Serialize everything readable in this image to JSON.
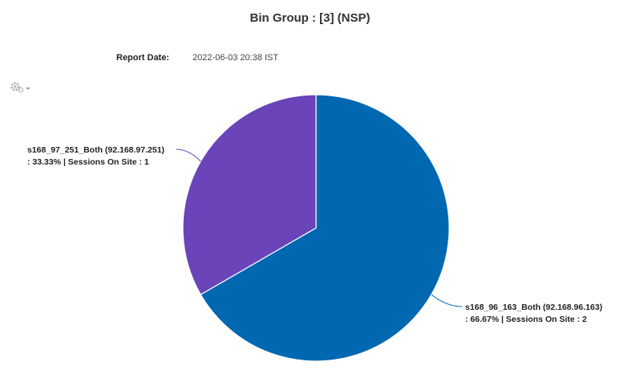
{
  "header": {
    "title": "Bin Group :  [3] (NSP)",
    "report_date_label": "Report Date:",
    "report_date_value": "2022-06-03 20:38 IST"
  },
  "toolbar": {
    "options_icon": "gear-icon"
  },
  "chart_data": {
    "type": "pie",
    "title": "Bin Group :  [3] (NSP)",
    "series": [
      {
        "values": [
          66.67,
          33.33
        ],
        "labels": [
          "s168_96_163_Both (92.168.96.163)",
          "s168_97_251_Both (92.168.97.251)"
        ],
        "sessions": [
          2,
          1
        ],
        "colors": [
          "#0067b1",
          "#6a44b8"
        ]
      }
    ],
    "data_labels": [
      {
        "line1": "s168_96_163_Both (92.168.96.163)",
        "line2": ": 66.67% | Sessions On Site : 2"
      },
      {
        "line1": "s168_97_251_Both (92.168.97.251)",
        "line2": ": 33.33% | Sessions On Site : 1"
      }
    ]
  }
}
